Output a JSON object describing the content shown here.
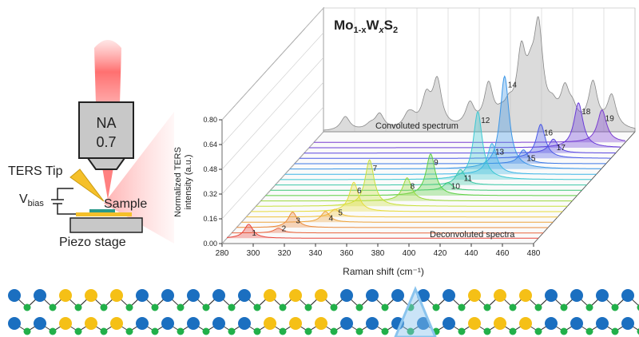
{
  "chart_data": {
    "type": "waterfall3d",
    "title_parts": [
      "Mo",
      "1-x",
      "W",
      "x",
      "S",
      "2"
    ],
    "xlabel": "Raman shift (cm⁻¹)",
    "ylabel": [
      "Normalized TERS",
      "intensity (a.u.)"
    ],
    "annotations": [
      "Convoluted spectrum",
      "Deconvoluted spectra"
    ],
    "xlim": [
      280,
      480
    ],
    "xticks": [
      280,
      300,
      320,
      340,
      360,
      380,
      400,
      420,
      440,
      460,
      480
    ],
    "ylim": [
      0,
      0.8
    ],
    "yticks": [
      {
        "value": 0,
        "label": "0.00"
      },
      {
        "value": 0.16,
        "label": "0.16"
      },
      {
        "value": 0.32,
        "label": "0.32"
      },
      {
        "value": 0.48,
        "label": "0.48"
      },
      {
        "value": 0.64,
        "label": "0.64"
      },
      {
        "value": 0.8,
        "label": "0.80"
      }
    ],
    "convoluted_color": "#b8b8b8",
    "peaks": [
      {
        "label": "1",
        "x": 294,
        "height": 0.09,
        "color": "#e8453c"
      },
      {
        "label": "2",
        "x": 310,
        "height": 0.03,
        "color": "#e8643c"
      },
      {
        "label": "3",
        "x": 316,
        "height": 0.1,
        "color": "#ea8a3c"
      },
      {
        "label": "4",
        "x": 334,
        "height": 0.07,
        "color": "#eda33c"
      },
      {
        "label": "5",
        "x": 337,
        "height": 0.05,
        "color": "#f0c23c"
      },
      {
        "label": "6",
        "x": 346,
        "height": 0.19,
        "color": "#e6dc3c"
      },
      {
        "label": "7",
        "x": 353,
        "height": 0.3,
        "color": "#c8e03c"
      },
      {
        "label": "8",
        "x": 374,
        "height": 0.15,
        "color": "#9ad83c"
      },
      {
        "label": "9",
        "x": 386,
        "height": 0.27,
        "color": "#5ccf45"
      },
      {
        "label": "10",
        "x": 394,
        "height": 0.05,
        "color": "#3cc878"
      },
      {
        "label": "11",
        "x": 399,
        "height": 0.1,
        "color": "#3cc8a8"
      },
      {
        "label": "12",
        "x": 407,
        "height": 0.44,
        "color": "#3cc8d2"
      },
      {
        "label": "13",
        "x": 413,
        "height": 0.2,
        "color": "#3cb4e6"
      },
      {
        "label": "14",
        "x": 418,
        "height": 0.6,
        "color": "#3c96e6"
      },
      {
        "label": "15",
        "x": 427,
        "height": 0.09,
        "color": "#3c78e6"
      },
      {
        "label": "16",
        "x": 435,
        "height": 0.22,
        "color": "#4a5ae6"
      },
      {
        "label": "17",
        "x": 440,
        "height": 0.09,
        "color": "#5a46e0"
      },
      {
        "label": "18",
        "x": 453,
        "height": 0.29,
        "color": "#6a3cd8"
      },
      {
        "label": "19",
        "x": 465,
        "height": 0.21,
        "color": "#7a3cd0"
      }
    ]
  },
  "schematic": {
    "objective": [
      "NA",
      "0.7"
    ],
    "tip": "TERS Tip",
    "vbias": [
      "V",
      "bias"
    ],
    "sample": "Sample",
    "stage": "Piezo stage"
  }
}
